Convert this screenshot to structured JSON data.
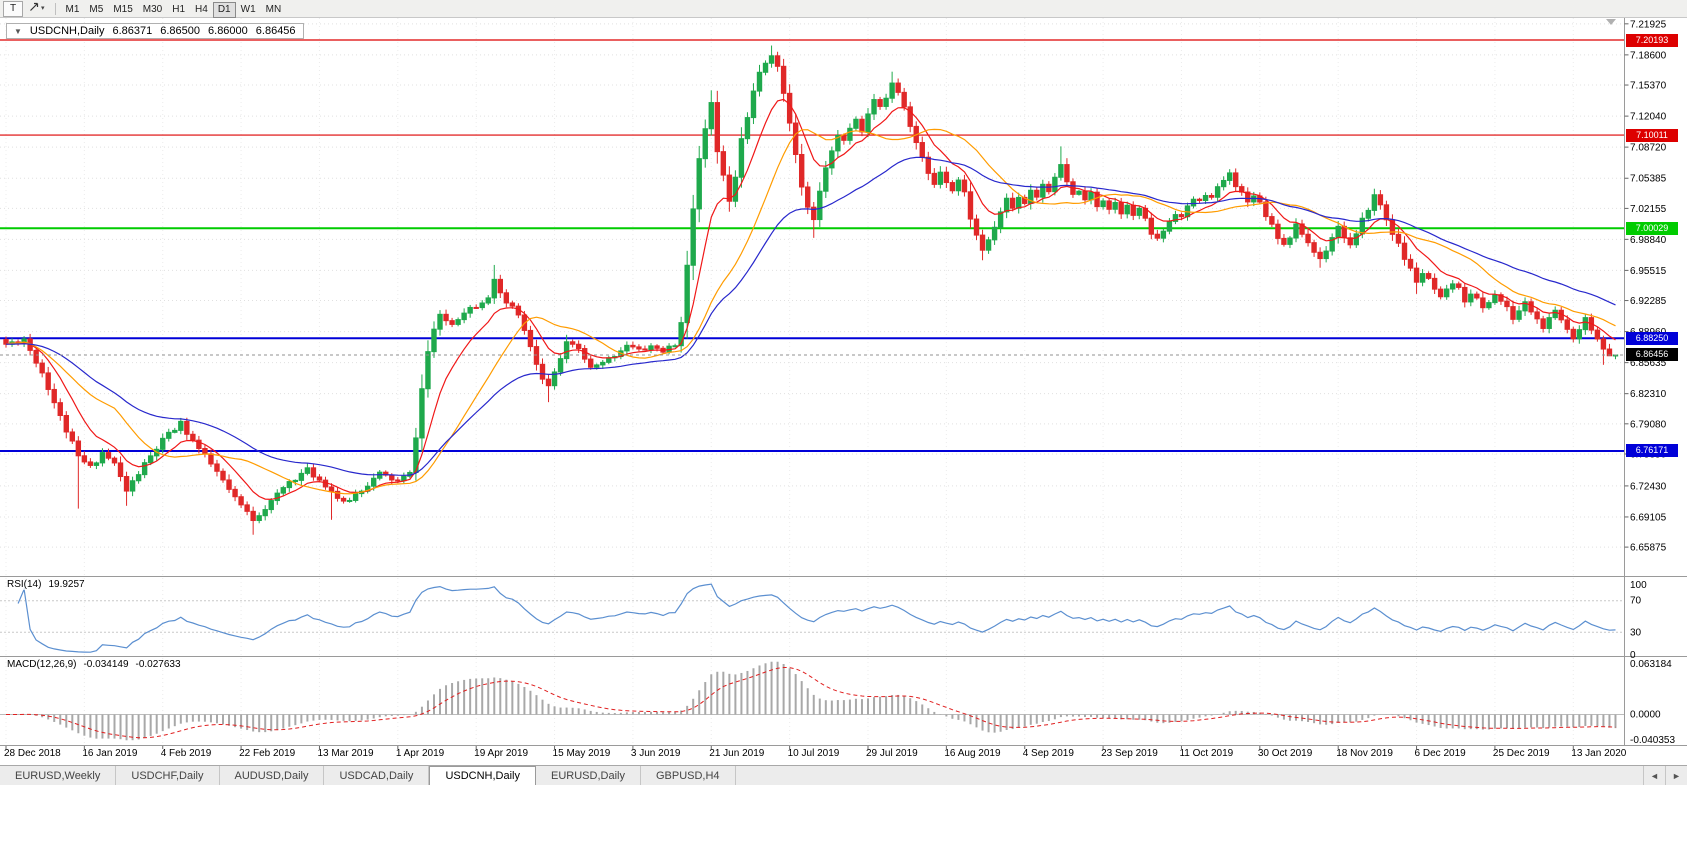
{
  "toolbar": {
    "text_tool_label": "T",
    "timeframes": [
      "M1",
      "M5",
      "M15",
      "M30",
      "H1",
      "H4",
      "D1",
      "W1",
      "MN"
    ],
    "active_timeframe": "D1",
    "dropdown_glyph": "▾"
  },
  "chart": {
    "title": {
      "collapse_arrow": "▼",
      "symbol": "USDCNH,Daily",
      "open": "6.86371",
      "high": "6.86500",
      "low": "6.86000",
      "close": "6.86456"
    },
    "scale": {
      "price_max": 7.2255,
      "price_min": 6.6278
    },
    "price_axis_ticks": [
      "7.21925",
      "7.18600",
      "7.15370",
      "7.12040",
      "7.08720",
      "7.05385",
      "7.02155",
      "6.98840",
      "6.95515",
      "6.92285",
      "6.88960",
      "6.85635",
      "6.82310",
      "6.79080",
      "6.75850",
      "6.72430",
      "6.69105",
      "6.65875"
    ],
    "levels": [
      {
        "price": 7.20193,
        "label": "7.20193",
        "color": "#dd0000",
        "width": 1.2
      },
      {
        "price": 7.10011,
        "label": "7.10011",
        "color": "#dd0000",
        "width": 1.2
      },
      {
        "price": 7.00029,
        "label": "7.00029",
        "color": "#00cc00",
        "width": 2
      },
      {
        "price": 6.8825,
        "label": "6.88250",
        "color": "#0000d8",
        "width": 2
      },
      {
        "price": 6.76171,
        "label": "6.76171",
        "color": "#0000d8",
        "width": 2
      }
    ],
    "current_price": {
      "label": "6.86456",
      "value": 6.86456,
      "badge_color": "#000000"
    }
  },
  "rsi": {
    "label": "RSI(14)",
    "value_label": "19.9257",
    "color": "#5b8fd0",
    "axis": [
      "100",
      "70",
      "30",
      "0"
    ],
    "guide_levels": [
      70,
      30
    ]
  },
  "macd": {
    "label": "MACD(12,26,9)",
    "value_main": "-0.034149",
    "value_signal": "-0.027633",
    "axis_top": "0.063184",
    "axis_zero": "0.0000",
    "axis_bottom": "-0.040353"
  },
  "date_axis": [
    "28 Dec 2018",
    "16 Jan 2019",
    "4 Feb 2019",
    "22 Feb 2019",
    "13 Mar 2019",
    "1 Apr 2019",
    "19 Apr 2019",
    "15 May 2019",
    "3 Jun 2019",
    "21 Jun 2019",
    "10 Jul 2019",
    "29 Jul 2019",
    "16 Aug 2019",
    "4 Sep 2019",
    "23 Sep 2019",
    "11 Oct 2019",
    "30 Oct 2019",
    "18 Nov 2019",
    "6 Dec 2019",
    "25 Dec 2019",
    "13 Jan 2020"
  ],
  "tabs": {
    "items": [
      "EURUSD,Weekly",
      "USDCHF,Daily",
      "AUDUSD,Daily",
      "USDCAD,Daily",
      "USDCNH,Daily",
      "EURUSD,Daily",
      "GBPUSD,H4"
    ],
    "active": "USDCNH,Daily",
    "scroll_left_glyph": "◄",
    "scroll_right_glyph": "►"
  },
  "chart_data": {
    "type": "candlestick",
    "symbol": "USDCNH",
    "timeframe": "Daily",
    "n_candles": 268,
    "price_range_visible": [
      6.6278,
      7.2255
    ],
    "last_candle_ohlc": [
      6.86371,
      6.865,
      6.86,
      6.86456
    ],
    "noise_amplitude": 0.0032,
    "seed": 11,
    "up_color": "#1fa94c",
    "down_color": "#e02828",
    "close_anchors": [
      [
        0,
        6.876
      ],
      [
        3,
        6.882
      ],
      [
        6,
        6.846
      ],
      [
        9,
        6.798
      ],
      [
        12,
        6.755
      ],
      [
        14,
        6.744
      ],
      [
        16,
        6.76
      ],
      [
        18,
        6.748
      ],
      [
        20,
        6.719
      ],
      [
        23,
        6.747
      ],
      [
        26,
        6.773
      ],
      [
        29,
        6.791
      ],
      [
        32,
        6.764
      ],
      [
        35,
        6.739
      ],
      [
        38,
        6.71
      ],
      [
        41,
        6.689
      ],
      [
        44,
        6.707
      ],
      [
        47,
        6.729
      ],
      [
        50,
        6.741
      ],
      [
        53,
        6.726
      ],
      [
        56,
        6.705
      ],
      [
        59,
        6.721
      ],
      [
        62,
        6.737
      ],
      [
        65,
        6.729
      ],
      [
        67,
        6.737
      ],
      [
        68,
        6.778
      ],
      [
        69,
        6.828
      ],
      [
        70,
        6.868
      ],
      [
        71,
        6.892
      ],
      [
        72,
        6.905
      ],
      [
        74,
        6.898
      ],
      [
        76,
        6.912
      ],
      [
        78,
        6.918
      ],
      [
        80,
        6.928
      ],
      [
        81,
        6.943
      ],
      [
        82,
        6.928
      ],
      [
        83,
        6.92
      ],
      [
        85,
        6.908
      ],
      [
        87,
        6.872
      ],
      [
        89,
        6.838
      ],
      [
        90,
        6.83
      ],
      [
        91,
        6.845
      ],
      [
        93,
        6.876
      ],
      [
        95,
        6.871
      ],
      [
        97,
        6.85
      ],
      [
        99,
        6.855
      ],
      [
        101,
        6.865
      ],
      [
        103,
        6.876
      ],
      [
        105,
        6.869
      ],
      [
        107,
        6.874
      ],
      [
        109,
        6.869
      ],
      [
        111,
        6.874
      ],
      [
        112,
        6.902
      ],
      [
        113,
        6.958
      ],
      [
        114,
        7.022
      ],
      [
        115,
        7.078
      ],
      [
        116,
        7.105
      ],
      [
        117,
        7.132
      ],
      [
        118,
        7.085
      ],
      [
        119,
        7.055
      ],
      [
        120,
        7.032
      ],
      [
        121,
        7.058
      ],
      [
        122,
        7.098
      ],
      [
        123,
        7.122
      ],
      [
        124,
        7.148
      ],
      [
        125,
        7.165
      ],
      [
        126,
        7.178
      ],
      [
        127,
        7.188
      ],
      [
        128,
        7.172
      ],
      [
        129,
        7.145
      ],
      [
        130,
        7.112
      ],
      [
        131,
        7.078
      ],
      [
        132,
        7.045
      ],
      [
        133,
        7.022
      ],
      [
        134,
        7.012
      ],
      [
        135,
        7.038
      ],
      [
        136,
        7.062
      ],
      [
        137,
        7.085
      ],
      [
        138,
        7.102
      ],
      [
        139,
        7.092
      ],
      [
        140,
        7.108
      ],
      [
        141,
        7.118
      ],
      [
        142,
        7.105
      ],
      [
        143,
        7.122
      ],
      [
        144,
        7.138
      ],
      [
        145,
        7.128
      ],
      [
        146,
        7.142
      ],
      [
        147,
        7.158
      ],
      [
        148,
        7.148
      ],
      [
        149,
        7.132
      ],
      [
        150,
        7.112
      ],
      [
        151,
        7.092
      ],
      [
        152,
        7.075
      ],
      [
        153,
        7.058
      ],
      [
        154,
        7.048
      ],
      [
        155,
        7.062
      ],
      [
        156,
        7.052
      ],
      [
        157,
        7.042
      ],
      [
        158,
        7.052
      ],
      [
        159,
        7.038
      ],
      [
        160,
        7.012
      ],
      [
        161,
        6.992
      ],
      [
        162,
        6.978
      ],
      [
        163,
        6.985
      ],
      [
        164,
        7.002
      ],
      [
        165,
        7.018
      ],
      [
        166,
        7.032
      ],
      [
        167,
        7.022
      ],
      [
        168,
        7.035
      ],
      [
        169,
        7.028
      ],
      [
        170,
        7.042
      ],
      [
        171,
        7.035
      ],
      [
        172,
        7.048
      ],
      [
        173,
        7.042
      ],
      [
        174,
        7.052
      ],
      [
        175,
        7.068
      ],
      [
        176,
        7.048
      ],
      [
        177,
        7.035
      ],
      [
        178,
        7.042
      ],
      [
        179,
        7.028
      ],
      [
        180,
        7.038
      ],
      [
        181,
        7.025
      ],
      [
        182,
        7.032
      ],
      [
        183,
        7.022
      ],
      [
        184,
        7.028
      ],
      [
        185,
        7.018
      ],
      [
        186,
        7.028
      ],
      [
        187,
        7.012
      ],
      [
        188,
        7.022
      ],
      [
        189,
        7.008
      ],
      [
        190,
        6.995
      ],
      [
        191,
        6.988
      ],
      [
        192,
        6.998
      ],
      [
        193,
        7.008
      ],
      [
        194,
        7.018
      ],
      [
        195,
        7.012
      ],
      [
        196,
        7.022
      ],
      [
        197,
        7.032
      ],
      [
        198,
        7.028
      ],
      [
        199,
        7.038
      ],
      [
        200,
        7.032
      ],
      [
        201,
        7.042
      ],
      [
        202,
        7.052
      ],
      [
        203,
        7.058
      ],
      [
        204,
        7.048
      ],
      [
        205,
        7.038
      ],
      [
        206,
        7.028
      ],
      [
        207,
        7.038
      ],
      [
        208,
        7.028
      ],
      [
        209,
        7.015
      ],
      [
        210,
        7.005
      ],
      [
        211,
        6.992
      ],
      [
        212,
        6.982
      ],
      [
        213,
        6.992
      ],
      [
        214,
        7.002
      ],
      [
        215,
        6.995
      ],
      [
        216,
        6.985
      ],
      [
        217,
        6.975
      ],
      [
        218,
        6.968
      ],
      [
        219,
        6.978
      ],
      [
        220,
        6.992
      ],
      [
        221,
        7.002
      ],
      [
        222,
        6.992
      ],
      [
        223,
        6.982
      ],
      [
        224,
        6.992
      ],
      [
        225,
        7.008
      ],
      [
        226,
        7.022
      ],
      [
        227,
        7.035
      ],
      [
        228,
        7.025
      ],
      [
        229,
        7.01
      ],
      [
        230,
        6.996
      ],
      [
        231,
        6.982
      ],
      [
        232,
        6.968
      ],
      [
        233,
        6.956
      ],
      [
        234,
        6.944
      ],
      [
        235,
        6.952
      ],
      [
        236,
        6.944
      ],
      [
        237,
        6.934
      ],
      [
        238,
        6.924
      ],
      [
        239,
        6.932
      ],
      [
        240,
        6.942
      ],
      [
        241,
        6.934
      ],
      [
        242,
        6.924
      ],
      [
        243,
        6.932
      ],
      [
        244,
        6.924
      ],
      [
        245,
        6.914
      ],
      [
        246,
        6.922
      ],
      [
        247,
        6.93
      ],
      [
        248,
        6.922
      ],
      [
        249,
        6.914
      ],
      [
        250,
        6.904
      ],
      [
        251,
        6.912
      ],
      [
        252,
        6.92
      ],
      [
        253,
        6.912
      ],
      [
        254,
        6.902
      ],
      [
        255,
        6.894
      ],
      [
        256,
        6.902
      ],
      [
        257,
        6.91
      ],
      [
        258,
        6.902
      ],
      [
        259,
        6.892
      ],
      [
        260,
        6.884
      ],
      [
        261,
        6.894
      ],
      [
        262,
        6.904
      ],
      [
        263,
        6.894
      ],
      [
        264,
        6.882
      ],
      [
        265,
        6.868
      ],
      [
        266,
        6.872
      ],
      [
        267,
        6.8646
      ]
    ],
    "special_wicks": [
      [
        12,
        "low",
        6.7
      ],
      [
        20,
        "low",
        6.703
      ],
      [
        41,
        "low",
        6.672
      ],
      [
        54,
        "low",
        6.688
      ],
      [
        81,
        "high",
        6.961
      ],
      [
        90,
        "low",
        6.814
      ],
      [
        117,
        "high",
        7.148
      ],
      [
        120,
        "low",
        7.018
      ],
      [
        127,
        "high",
        7.196
      ],
      [
        134,
        "low",
        6.99
      ],
      [
        147,
        "high",
        7.168
      ],
      [
        162,
        "low",
        6.966
      ],
      [
        175,
        "high",
        7.088
      ],
      [
        218,
        "low",
        6.958
      ],
      [
        234,
        "low",
        6.93
      ],
      [
        265,
        "low",
        6.854
      ]
    ],
    "moving_averages": [
      {
        "name": "fast-red",
        "method": "ema",
        "period": 9,
        "color": "#f01818"
      },
      {
        "name": "medium-orange",
        "method": "sma",
        "period": 19,
        "color": "#ff9c00"
      },
      {
        "name": "slow-blue",
        "method": "ema",
        "period": 38,
        "color": "#2828cc"
      }
    ],
    "indicators": [
      {
        "name": "RSI",
        "period": 14,
        "range": [
          0,
          100
        ],
        "guide_levels": [
          70,
          30
        ],
        "last_value": 19.9257
      },
      {
        "name": "MACD",
        "fast": 12,
        "slow": 26,
        "signal": 9,
        "last_values": [
          -0.034149,
          -0.027633
        ]
      }
    ],
    "horizontal_levels": [
      7.20193,
      7.10011,
      7.00029,
      6.8825,
      6.76171
    ]
  }
}
